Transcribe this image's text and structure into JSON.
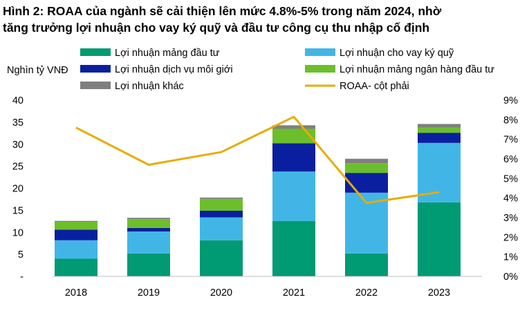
{
  "title_lines": [
    "Hình 2: ROAA của ngành sẽ cải thiện lên mức 4.8%-5% trong năm 2024, nhờ",
    "tăng trưởng lợi nhuận cho vay ký quỹ và đầu tư công cụ thu nhập cố định"
  ],
  "chart_data": {
    "type": "bar",
    "stacked": true,
    "categories": [
      "2018",
      "2019",
      "2020",
      "2021",
      "2022",
      "2023"
    ],
    "ylabel": "Nghìn tỷ VNĐ",
    "ylim": [
      0,
      40
    ],
    "y_ticks": [
      "-",
      "5",
      "10",
      "15",
      "20",
      "25",
      "30",
      "35",
      "40"
    ],
    "y2lim": [
      0,
      9
    ],
    "y2_ticks": [
      "0%",
      "1%",
      "2%",
      "3%",
      "4%",
      "5%",
      "6%",
      "7%",
      "8%",
      "9%"
    ],
    "grid": false,
    "legend_position": "top",
    "series": [
      {
        "name": "Lợi nhuận mảng đầu tư",
        "color": "#009a73",
        "values": [
          4.0,
          5.2,
          8.2,
          12.6,
          5.2,
          16.8
        ]
      },
      {
        "name": "Lợi nhuận cho vay ký quỹ",
        "color": "#41b6e6",
        "values": [
          4.2,
          5.0,
          5.2,
          11.2,
          13.8,
          13.5
        ]
      },
      {
        "name": "Lợi nhuận dịch vụ môi giới",
        "color": "#0a1f9f",
        "values": [
          2.4,
          0.8,
          1.5,
          6.4,
          4.5,
          2.3
        ]
      },
      {
        "name": "Lợi nhuận mảng ngân hàng đầu tư",
        "color": "#6cbf2a",
        "values": [
          1.8,
          2.0,
          2.7,
          3.3,
          2.2,
          1.2
        ]
      },
      {
        "name": "Lợi nhuận khác",
        "color": "#7f7f7f",
        "values": [
          0.2,
          0.3,
          0.3,
          0.8,
          1.0,
          0.8
        ]
      }
    ],
    "line_series": {
      "name": "ROAA- cột phải",
      "color": "#e6ac00",
      "axis": "right",
      "values": [
        7.6,
        5.7,
        6.35,
        8.15,
        3.75,
        4.3
      ]
    }
  }
}
